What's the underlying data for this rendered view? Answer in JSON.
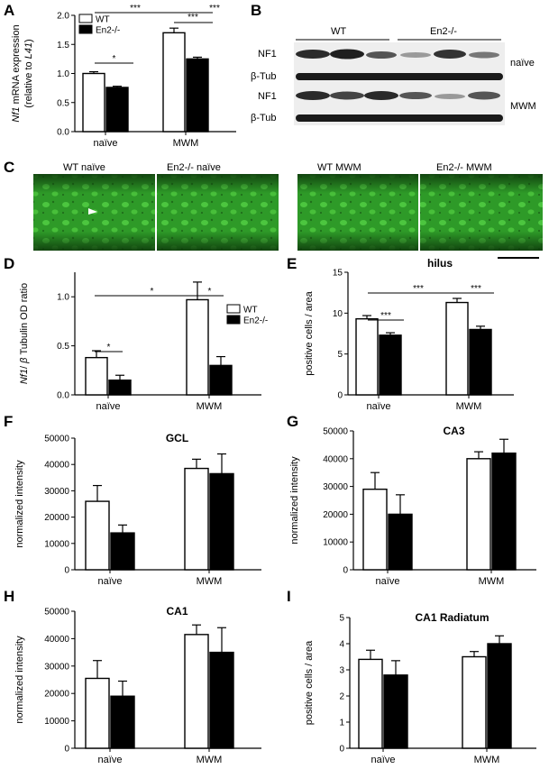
{
  "panel_letters": [
    "A",
    "B",
    "C",
    "D",
    "E",
    "F",
    "G",
    "H",
    "I"
  ],
  "colors": {
    "wt": "#ffffff",
    "ko": "#000000",
    "micro": "#39b030",
    "blot_bg": "#f4f4f4"
  },
  "blot": {
    "groups": [
      "WT",
      "En2-/-"
    ],
    "rows": [
      "NF1",
      "β-Tub",
      "NF1",
      "β-Tub"
    ],
    "conditions": [
      "naïve",
      "MWM"
    ]
  },
  "micro": {
    "labels": [
      "WT naïve",
      "En2-/- naïve",
      "WT MWM",
      "En2-/- MWM"
    ]
  },
  "chart_data": [
    {
      "panel": "A",
      "type": "bar",
      "categories": [
        "naïve",
        "MWM"
      ],
      "series": [
        {
          "name": "WT",
          "values": [
            1.0,
            1.7
          ],
          "errors": [
            0.03,
            0.08
          ]
        },
        {
          "name": "En2-/-",
          "values": [
            0.76,
            1.25
          ],
          "errors": [
            0.02,
            0.03
          ]
        }
      ],
      "title": "",
      "ylabel_parts": [
        "Nf1",
        " mRNA expression",
        "(relative to ",
        "L41",
        ")"
      ],
      "ylim": [
        0,
        2.0
      ],
      "yticks": [
        "0.0",
        "0.5",
        "1.0",
        "1.5",
        "2.0"
      ],
      "tick_step": 0.5,
      "tick_decimals": 1,
      "legend": "top-left",
      "significance": [
        "*",
        "***",
        "***",
        "***"
      ]
    },
    {
      "panel": "D",
      "type": "bar",
      "categories": [
        "naïve",
        "MWM"
      ],
      "series": [
        {
          "name": "WT",
          "values": [
            0.38,
            0.97
          ],
          "errors": [
            0.07,
            0.18
          ]
        },
        {
          "name": "En2-/-",
          "values": [
            0.15,
            0.3
          ],
          "errors": [
            0.05,
            0.09
          ]
        }
      ],
      "title": "",
      "ylabel_parts": [
        "Nf1",
        "/ ",
        "β",
        " Tubulin OD ratio"
      ],
      "ylim": [
        0,
        1.25
      ],
      "yticks": [
        "0.0",
        "0.5",
        "1.0"
      ],
      "tick_step": 0.5,
      "tick_decimals": 1,
      "legend": "top-right",
      "significance": [
        "*",
        "*",
        "*"
      ]
    },
    {
      "panel": "E",
      "type": "bar",
      "categories": [
        "naïve",
        "MWM"
      ],
      "series": [
        {
          "name": "WT",
          "values": [
            9.3,
            11.3
          ],
          "errors": [
            0.4,
            0.5
          ]
        },
        {
          "name": "En2-/-",
          "values": [
            7.3,
            8.0
          ],
          "errors": [
            0.3,
            0.4
          ]
        }
      ],
      "title": "hilus",
      "ylabel": "positive cells / area",
      "ylim": [
        0,
        15
      ],
      "yticks": [
        "0",
        "5",
        "10",
        "15"
      ],
      "tick_step": 5,
      "tick_decimals": 0,
      "significance": [
        "***",
        "***",
        "***"
      ]
    },
    {
      "panel": "F",
      "type": "bar",
      "categories": [
        "naïve",
        "MWM"
      ],
      "series": [
        {
          "name": "WT",
          "values": [
            26000,
            38500
          ],
          "errors": [
            6000,
            3500
          ]
        },
        {
          "name": "En2-/-",
          "values": [
            14000,
            36500
          ],
          "errors": [
            3000,
            7500
          ]
        }
      ],
      "title": "GCL",
      "ylabel": "normalized intensity",
      "ylim": [
        0,
        50000
      ],
      "yticks": [
        "0",
        "10000",
        "20000",
        "30000",
        "40000",
        "50000"
      ],
      "tick_step": 10000,
      "tick_decimals": 0
    },
    {
      "panel": "G",
      "type": "bar",
      "categories": [
        "naïve",
        "MWM"
      ],
      "series": [
        {
          "name": "WT",
          "values": [
            29000,
            40000
          ],
          "errors": [
            6000,
            2500
          ]
        },
        {
          "name": "En2-/-",
          "values": [
            20000,
            42000
          ],
          "errors": [
            7000,
            5000
          ]
        }
      ],
      "title": "CA3",
      "ylabel": "normalized intensity",
      "ylim": [
        0,
        50000
      ],
      "yticks": [
        "0",
        "10000",
        "20000",
        "30000",
        "40000",
        "50000"
      ],
      "tick_step": 10000,
      "tick_decimals": 0
    },
    {
      "panel": "H",
      "type": "bar",
      "categories": [
        "naïve",
        "MWM"
      ],
      "series": [
        {
          "name": "WT",
          "values": [
            25500,
            41500
          ],
          "errors": [
            6500,
            3500
          ]
        },
        {
          "name": "En2-/-",
          "values": [
            19000,
            35000
          ],
          "errors": [
            5500,
            9000
          ]
        }
      ],
      "title": "CA1",
      "ylabel": "normalized intensity",
      "ylim": [
        0,
        50000
      ],
      "yticks": [
        "0",
        "10000",
        "20000",
        "30000",
        "40000",
        "50000"
      ],
      "tick_step": 10000,
      "tick_decimals": 0
    },
    {
      "panel": "I",
      "type": "bar",
      "categories": [
        "naïve",
        "MWM"
      ],
      "series": [
        {
          "name": "WT",
          "values": [
            3.4,
            3.5
          ],
          "errors": [
            0.35,
            0.2
          ]
        },
        {
          "name": "En2-/-",
          "values": [
            2.8,
            4.0
          ],
          "errors": [
            0.55,
            0.3
          ]
        }
      ],
      "title": "CA1 Radiatum",
      "ylabel": "positive cells / area",
      "ylim": [
        0,
        5
      ],
      "yticks": [
        "0",
        "1",
        "2",
        "3",
        "4",
        "5"
      ],
      "tick_step": 1,
      "tick_decimals": 0
    }
  ]
}
